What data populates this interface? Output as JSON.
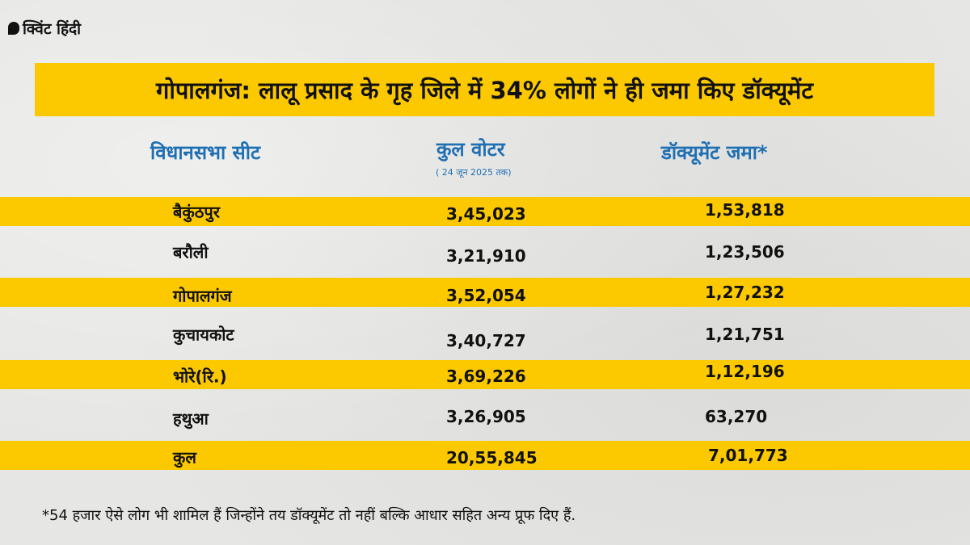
{
  "logo": {
    "text": "क्विंट हिंदी"
  },
  "title": "गोपालगंज: लालू प्रसाद के गृह जिले में 34% लोगों ने ही जमा किए डॉक्यूमेंट",
  "columns": {
    "seat": "विधानसभा सीट",
    "voters": "कुल वोटर",
    "voters_note": "( 24 जून 2025 तक)",
    "documents": "डॉक्यूमेंट जमा*"
  },
  "rows": [
    {
      "seat": "बैकुंठपुर",
      "voters": "3,45,023",
      "documents": "1,53,818"
    },
    {
      "seat": "बरौली",
      "voters": "3,21,910",
      "documents": "1,23,506"
    },
    {
      "seat": "गोपालगंज",
      "voters": "3,52,054",
      "documents": "1,27,232"
    },
    {
      "seat": "कुचायकोट",
      "voters": "3,40,727",
      "documents": "1,21,751"
    },
    {
      "seat": "भोरे(रि.)",
      "voters": "3,69,226",
      "documents": "1,12,196"
    },
    {
      "seat": "हथुआ",
      "voters": "3,26,905",
      "documents": "63,270"
    },
    {
      "seat": "कुल",
      "voters": "20,55,845",
      "documents": "7,01,773"
    }
  ],
  "footnote": "*54 हजार ऐसे लोग भी शामिल हैं जिन्होंने तय डॉक्यूमेंट तो नहीं बल्कि आधार सहित अन्य प्रूफ दिए हैं.",
  "colors": {
    "accent_yellow": "#fcc900",
    "header_blue": "#1f6fb3",
    "background": "#e6e6e4"
  }
}
